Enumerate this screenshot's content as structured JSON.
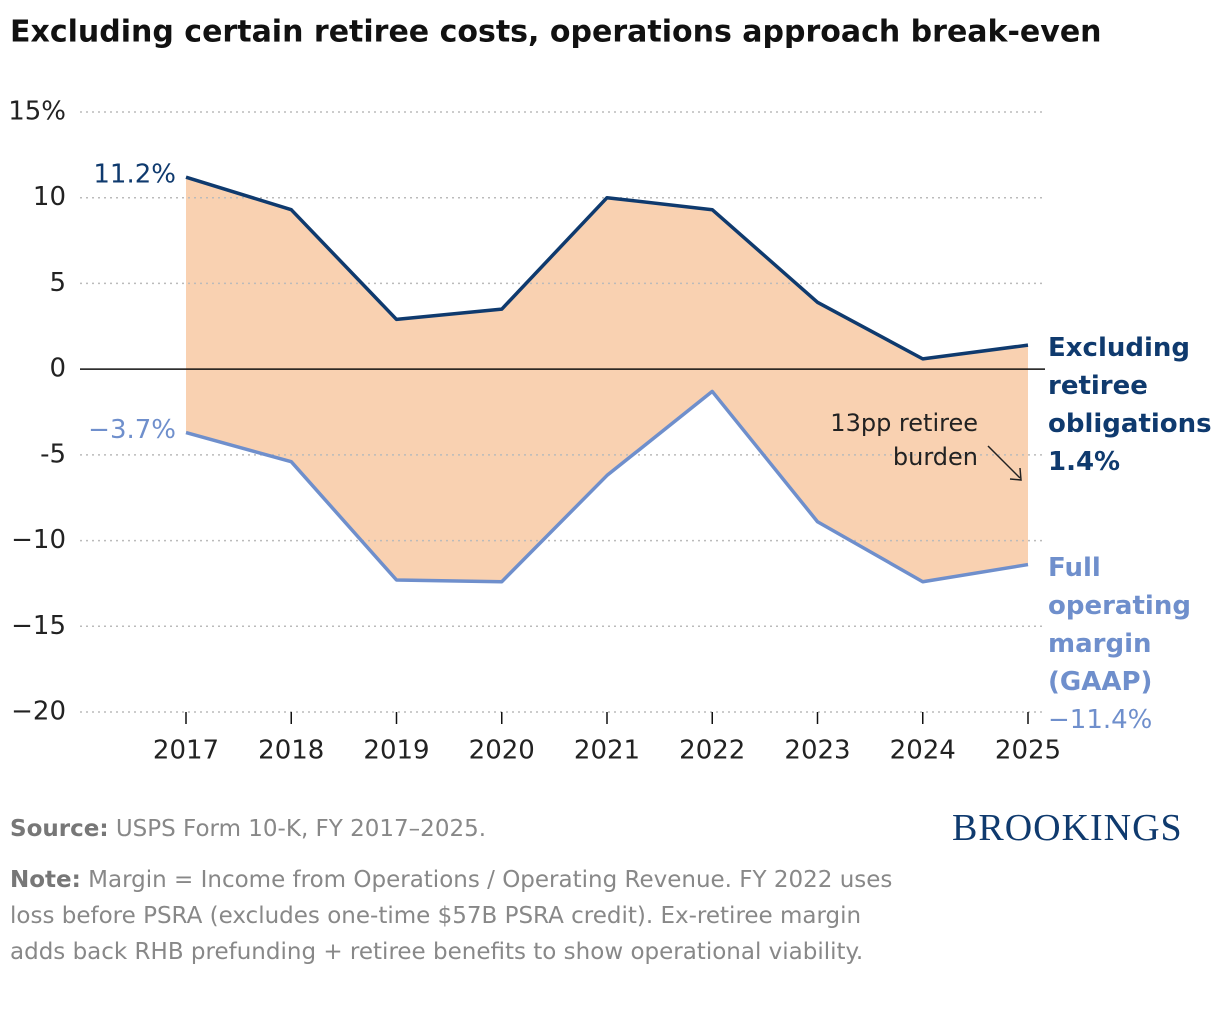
{
  "chart_data": {
    "type": "line",
    "title": "Excluding certain retiree costs, operations approach break-even",
    "categories": [
      "2017",
      "2018",
      "2019",
      "2020",
      "2021",
      "2022",
      "2023",
      "2024",
      "2025"
    ],
    "series": [
      {
        "name": "Excluding retiree obligations",
        "color": "#0f3a6e",
        "values": [
          11.2,
          9.3,
          2.9,
          3.5,
          10.0,
          9.3,
          3.9,
          0.6,
          1.4
        ],
        "value_labels": [
          "11.2%",
          null,
          null,
          null,
          null,
          null,
          null,
          null,
          "1.4%"
        ]
      },
      {
        "name": "Full operating margin (GAAP)",
        "color": "#6f8fcc",
        "values": [
          -3.7,
          -5.4,
          -12.3,
          -12.4,
          -6.2,
          -1.3,
          -8.9,
          -12.4,
          -11.4
        ],
        "value_labels": [
          "−3.7%",
          null,
          null,
          null,
          null,
          null,
          null,
          null,
          "−11.4%"
        ]
      }
    ],
    "fill_between": true,
    "fill_color": "#f9d1b1",
    "ylim": [
      -20,
      15
    ],
    "yticks": [
      {
        "value": -20,
        "label": "−20"
      },
      {
        "value": -15,
        "label": "−15"
      },
      {
        "value": -10,
        "label": "−10"
      },
      -5,
      0,
      5,
      10,
      {
        "value": 15,
        "label": "15%"
      }
    ],
    "grid": true,
    "annotation": "13pp retiree burden",
    "source_label": "Source:",
    "source": "USPS Form 10-K, FY 2017–2025.",
    "note_label": "Note:",
    "note": "Margin = Income from Operations / Operating Revenue. FY 2022 uses loss before PSRA (excludes one-time $57B PSRA credit). Ex-retiree margin adds back RHB prefunding + retiree benefits to show operational viability.",
    "brand": "BROOKINGS"
  }
}
